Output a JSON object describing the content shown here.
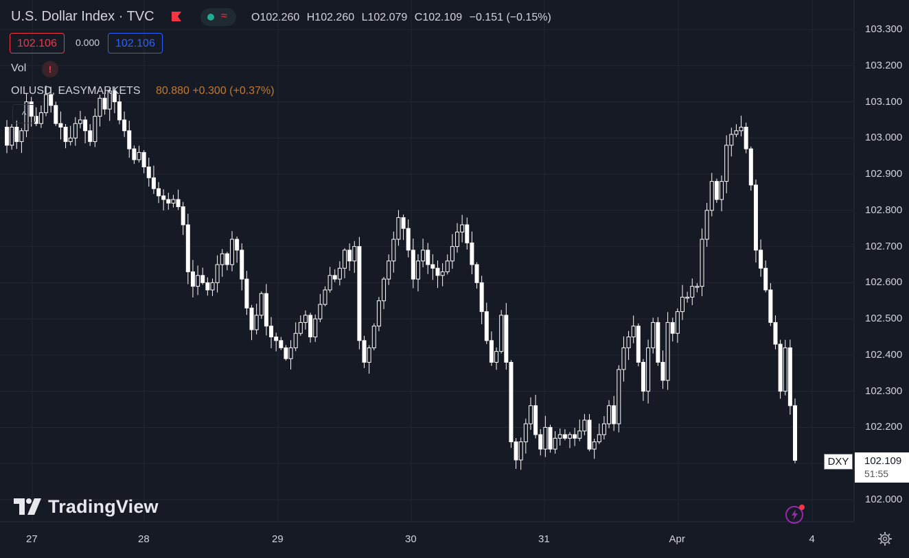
{
  "legend": {
    "title": "U.S. Dollar Index · TVC",
    "open": "O102.260",
    "high": "H102.260",
    "low": "L102.079",
    "close": "C102.109",
    "change": "−0.151 (−0.15%)",
    "bid": "102.106",
    "spread": "0.000",
    "ask": "102.106",
    "vol_label": "Vol",
    "warning": "!",
    "compare_symbol": "OILUSD, EASYMARKETS",
    "compare_values": "80.880 +0.300 (+0.37%)",
    "collapse_icon": "chevron-up-icon"
  },
  "price_axis": {
    "labels": [
      "103.300",
      "103.200",
      "103.100",
      "103.000",
      "102.900",
      "102.800",
      "102.700",
      "102.600",
      "102.500",
      "102.400",
      "102.300",
      "102.200",
      "102.000"
    ],
    "symbol_badge": "DXY",
    "last_price": "102.109",
    "countdown": "51:55"
  },
  "time_axis": {
    "labels": [
      "27",
      "28",
      "29",
      "30",
      "31",
      "Apr",
      "4"
    ]
  },
  "branding": {
    "logo_text": "TradingView"
  },
  "colors": {
    "background": "#161a25",
    "grid": "#222631",
    "candle": "#ffffff",
    "bid": "#f23645",
    "ask": "#2962ff",
    "compare": "#c17a35"
  },
  "chart_data": {
    "type": "candlestick",
    "symbol": "DXY",
    "ylim": [
      101.95,
      103.35
    ],
    "x_labels": [
      "27",
      "28",
      "29",
      "30",
      "31",
      "Apr",
      "4"
    ],
    "close_sequence": [
      102.98,
      103.03,
      102.99,
      103.02,
      103.1,
      103.06,
      103.04,
      103.07,
      103.12,
      103.09,
      103.04,
      103.03,
      102.99,
      103.0,
      103.04,
      103.05,
      103.02,
      102.99,
      103.06,
      103.11,
      103.08,
      103.13,
      103.1,
      103.05,
      103.02,
      102.97,
      102.94,
      102.96,
      102.92,
      102.89,
      102.86,
      102.84,
      102.83,
      102.82,
      102.83,
      102.81,
      102.76,
      102.63,
      102.59,
      102.62,
      102.6,
      102.58,
      102.6,
      102.65,
      102.68,
      102.65,
      102.72,
      102.69,
      102.61,
      102.53,
      102.47,
      102.51,
      102.57,
      102.48,
      102.45,
      102.44,
      102.42,
      102.39,
      102.42,
      102.46,
      102.49,
      102.51,
      102.45,
      102.5,
      102.54,
      102.58,
      102.62,
      102.61,
      102.64,
      102.69,
      102.66,
      102.7,
      102.44,
      102.38,
      102.42,
      102.48,
      102.55,
      102.61,
      102.66,
      102.72,
      102.78,
      102.75,
      102.69,
      102.61,
      102.66,
      102.69,
      102.65,
      102.64,
      102.62,
      102.63,
      102.66,
      102.7,
      102.74,
      102.76,
      102.71,
      102.65,
      102.6,
      102.52,
      102.44,
      102.38,
      102.41,
      102.51,
      102.38,
      102.16,
      102.11,
      102.16,
      102.21,
      102.26,
      102.18,
      102.14,
      102.2,
      102.14,
      102.17,
      102.18,
      102.17,
      102.18,
      102.17,
      102.19,
      102.22,
      102.14,
      102.16,
      102.18,
      102.21,
      102.26,
      102.21,
      102.36,
      102.42,
      102.45,
      102.48,
      102.38,
      102.3,
      102.42,
      102.49,
      102.38,
      102.33,
      102.49,
      102.46,
      102.52,
      102.56,
      102.56,
      102.59,
      102.59,
      102.72,
      102.8,
      102.88,
      102.83,
      102.88,
      102.98,
      103.01,
      103.02,
      103.03,
      102.97,
      102.87,
      102.69,
      102.64,
      102.58,
      102.49,
      102.43,
      102.3,
      102.42,
      102.26,
      102.109
    ]
  }
}
